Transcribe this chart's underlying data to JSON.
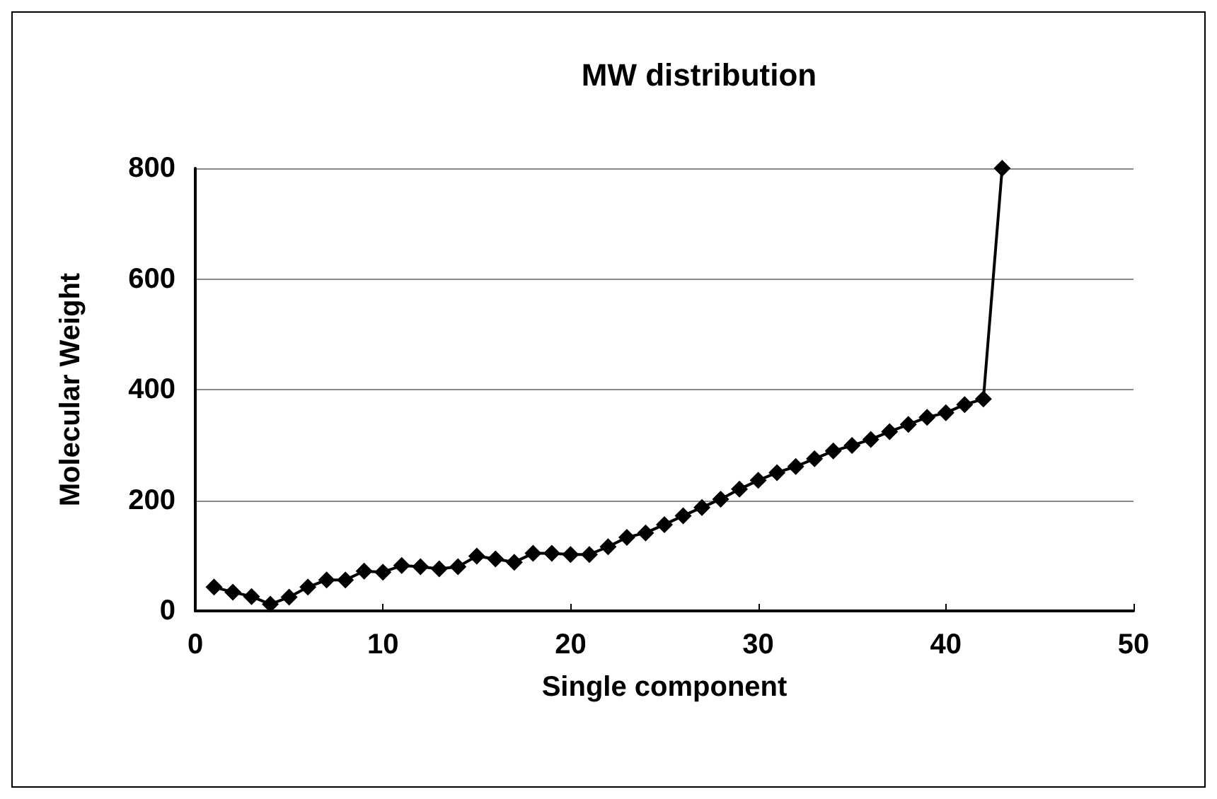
{
  "chart_data": {
    "type": "line",
    "title": "MW distribution",
    "xlabel": "Single component",
    "ylabel": "Molecular Weight",
    "x": [
      1,
      2,
      3,
      4,
      5,
      6,
      7,
      8,
      9,
      10,
      11,
      12,
      13,
      14,
      15,
      16,
      17,
      18,
      19,
      20,
      21,
      22,
      23,
      24,
      25,
      26,
      27,
      28,
      29,
      30,
      31,
      32,
      33,
      34,
      35,
      36,
      37,
      38,
      39,
      40,
      41,
      42,
      43
    ],
    "series": [
      {
        "color": "#000000",
        "values": [
          43,
          34,
          26,
          12,
          25,
          43,
          56,
          56,
          72,
          70,
          82,
          80,
          76,
          80,
          99,
          94,
          88,
          104,
          104,
          102,
          102,
          116,
          133,
          141,
          156,
          172,
          187,
          202,
          220,
          236,
          250,
          261,
          275,
          289,
          299,
          310,
          324,
          337,
          350,
          358,
          373,
          383,
          800
        ]
      }
    ],
    "xlim": [
      0,
      50
    ],
    "xticks": [
      0,
      10,
      20,
      30,
      40,
      50
    ],
    "ylim": [
      0,
      800
    ],
    "yticks": [
      0,
      200,
      400,
      600,
      800
    ],
    "grid": "y",
    "marker": "diamond",
    "line_style": "solid"
  }
}
